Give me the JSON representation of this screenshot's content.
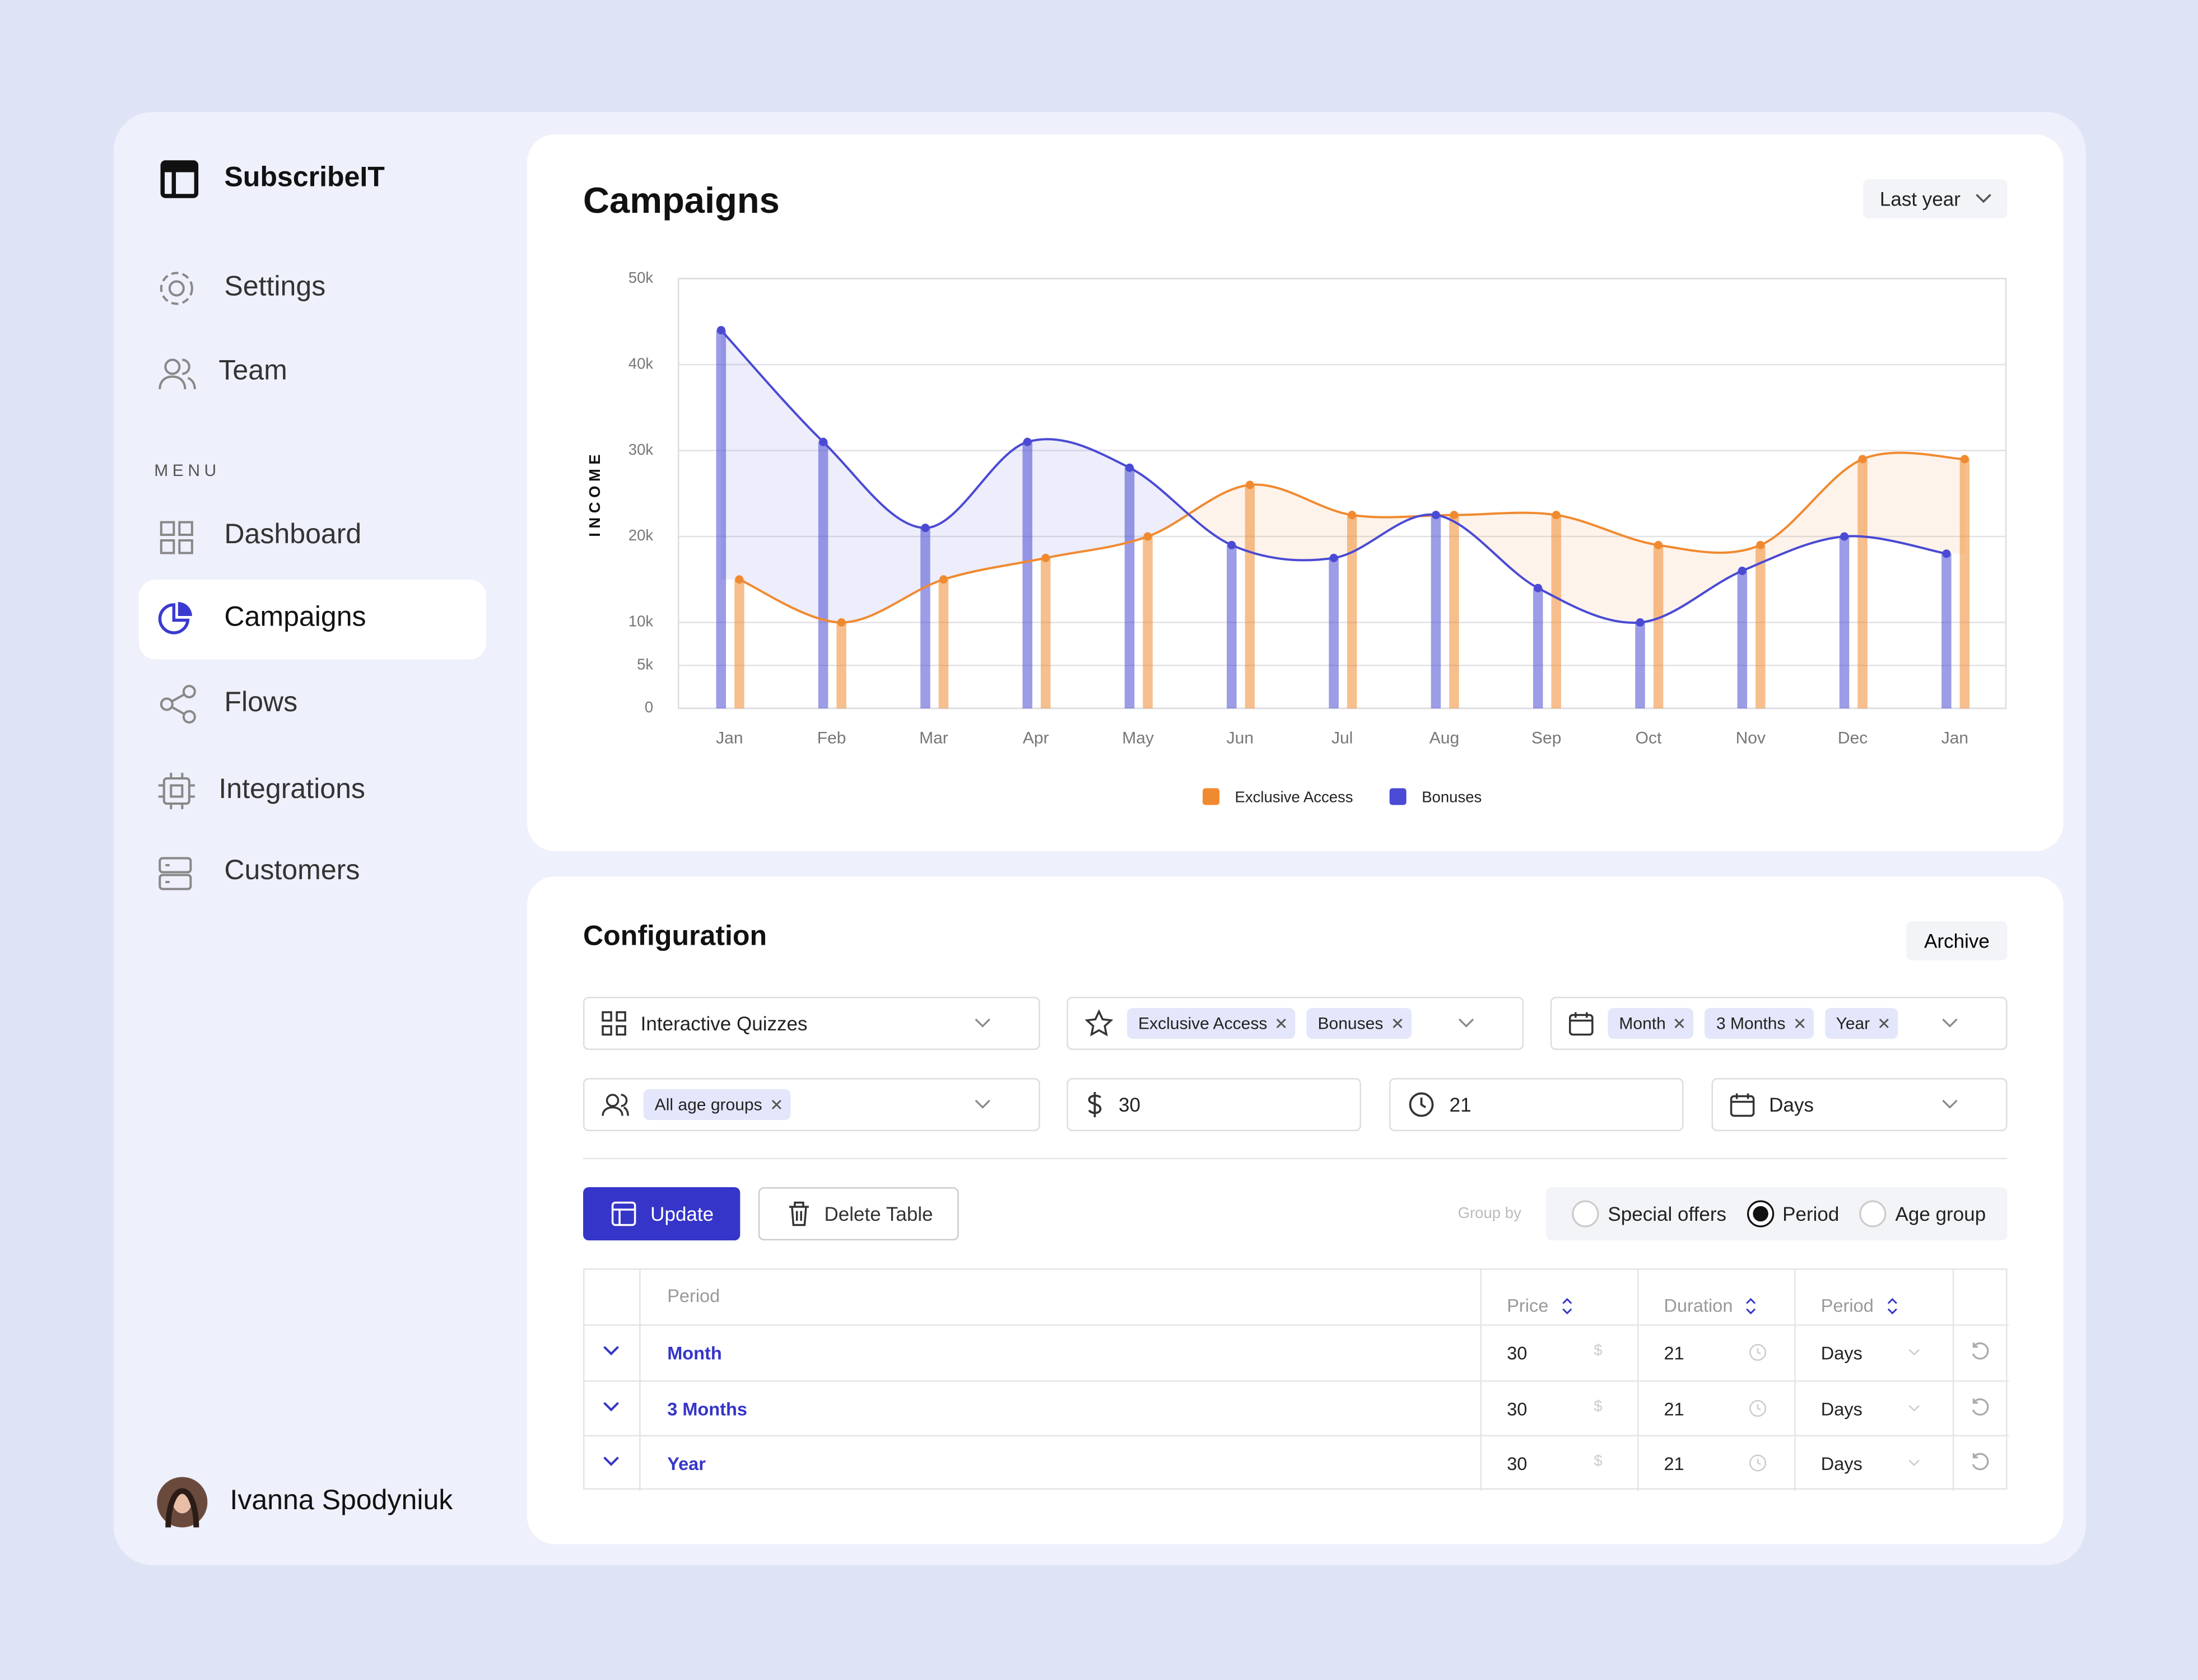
{
  "sidebar": {
    "brand": "SubscribeIT",
    "top_nav": [
      "Settings",
      "Team"
    ],
    "menu_label": "MENU",
    "menu": [
      "Dashboard",
      "Campaigns",
      "Flows",
      "Integrations",
      "Customers"
    ],
    "user": "Ivanna Spodyniuk"
  },
  "chart_data": {
    "type": "bar",
    "title": "Campaigns",
    "period_filter": "Last year",
    "ylabel": "INCOME",
    "categories": [
      "Jan",
      "Feb",
      "Mar",
      "Apr",
      "May",
      "Jun",
      "Jul",
      "Aug",
      "Sep",
      "Oct",
      "Nov",
      "Dec",
      "Jan"
    ],
    "series": [
      {
        "name": "Exclusive Access",
        "color": "#f08a30",
        "values": [
          15000,
          10000,
          15000,
          17500,
          20000,
          26000,
          22500,
          22500,
          22500,
          19000,
          19000,
          29000,
          29000
        ]
      },
      {
        "name": "Bonuses",
        "color": "#4a4ad4",
        "values": [
          44000,
          31000,
          21000,
          31000,
          28000,
          19000,
          17500,
          22500,
          14000,
          10000,
          16000,
          20000,
          18000
        ]
      }
    ],
    "ylim": [
      0,
      50000
    ],
    "yticks": [
      0,
      {
        "value": 5000,
        "label": "5k"
      },
      {
        "value": 10000,
        "label": "10k"
      },
      {
        "value": 20000,
        "label": "20k"
      },
      {
        "value": 30000,
        "label": "30k"
      },
      {
        "value": 40000,
        "label": "40k"
      },
      {
        "value": 50000,
        "label": "50k"
      }
    ],
    "grid": true,
    "legend": "bottom"
  },
  "configuration": {
    "title": "Configuration",
    "archive": "Archive",
    "offer_type": "Interactive Quizzes",
    "offers": [
      "Exclusive Access",
      "Bonuses"
    ],
    "periods": [
      "Month",
      "3 Months",
      "Year"
    ],
    "age_groups": [
      "All age groups"
    ],
    "price": "30",
    "duration": "21",
    "duration_unit": "Days",
    "actions": [
      "Update",
      "Delete Table"
    ],
    "group_by_label": "Group by",
    "group_by_options": [
      "Special offers",
      "Period",
      "Age group"
    ],
    "group_by_selected": 1,
    "table": {
      "headers": [
        "Period",
        "Price",
        "Duration",
        "Period"
      ],
      "price_unit": "$",
      "rows": [
        [
          "Month",
          "30",
          "21",
          "Days"
        ],
        [
          "3 Months",
          "30",
          "21",
          "Days"
        ],
        [
          "Year",
          "30",
          "21",
          "Days"
        ]
      ]
    }
  }
}
